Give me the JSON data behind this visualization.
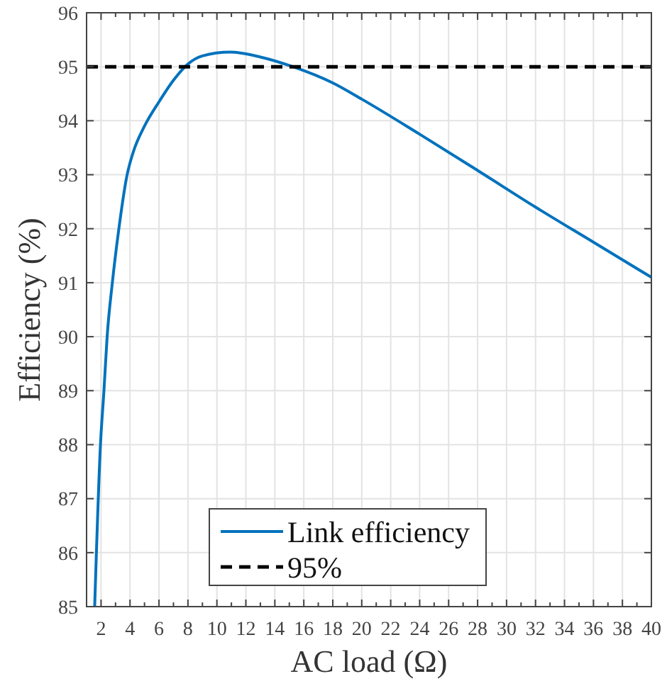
{
  "chart_data": {
    "type": "line",
    "xlabel": "AC load (Ω)",
    "ylabel": "Efficiency (%)",
    "xlim": [
      1,
      40
    ],
    "xticks": [
      2,
      4,
      6,
      8,
      10,
      12,
      14,
      16,
      18,
      20,
      22,
      24,
      26,
      28,
      30,
      32,
      34,
      36,
      38,
      40
    ],
    "ylim": [
      85,
      96
    ],
    "yticks": [
      85,
      86,
      87,
      88,
      89,
      90,
      91,
      92,
      93,
      94,
      95,
      96
    ],
    "grid": true,
    "legend": "bottom",
    "series": [
      {
        "name": "Link efficiency",
        "color": "#0072bd",
        "x": [
          1.56,
          1.96,
          2.2,
          2.42,
          2.78,
          3.23,
          3.8,
          4.2,
          5,
          6,
          7,
          8,
          9,
          10.9,
          13,
          15.25,
          18,
          20,
          24,
          28,
          32,
          36,
          40
        ],
        "values": [
          85,
          88,
          89,
          90,
          91,
          92,
          93,
          93.4,
          93.9,
          94.35,
          94.75,
          95.05,
          95.2,
          95.27,
          95.18,
          95,
          94.7,
          94.4,
          93.75,
          93.08,
          92.4,
          91.75,
          91.1
        ]
      },
      {
        "name": "95%",
        "type": "line",
        "color": "#000000",
        "line_style": "dashed",
        "x": [
          1,
          40
        ],
        "values": [
          95,
          95
        ]
      }
    ]
  }
}
